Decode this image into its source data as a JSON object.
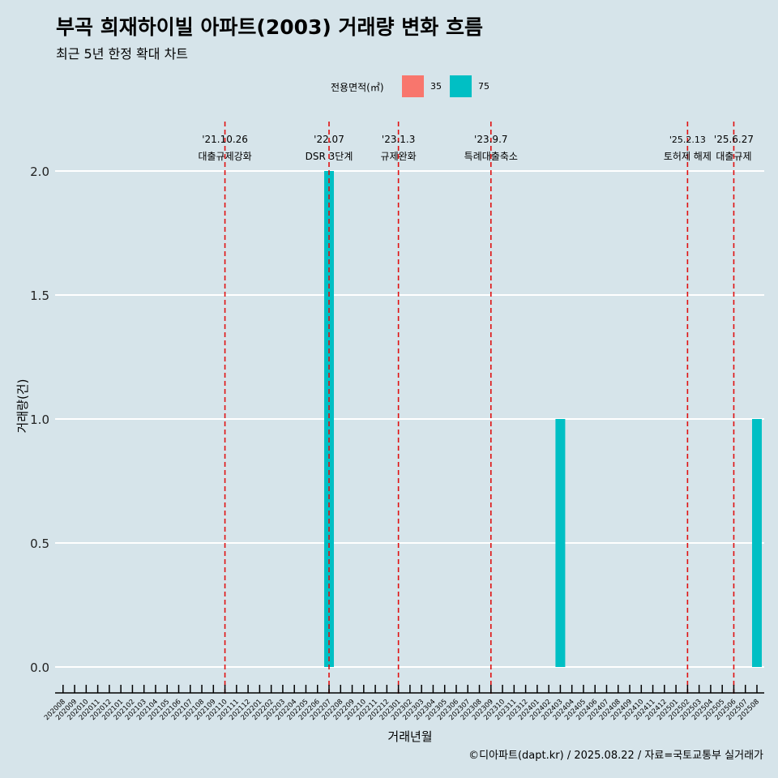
{
  "title": "부곡 희재하이빌 아파트(2003) 거래량 변화 흐름",
  "subtitle": "최근 5년 한정 확대 차트",
  "credit": "©디아파트(dapt.kr) / 2025.08.22 / 자료=국토교통부 실거래가",
  "legend": {
    "title": "전용면적(㎡)",
    "items": [
      {
        "label": "35",
        "color": "#f8766d"
      },
      {
        "label": "75",
        "color": "#00bfc4"
      }
    ]
  },
  "colors": {
    "background": "#d6e4ea",
    "grid": "#ffffff",
    "event_line": "#e01010"
  },
  "chart_data": {
    "type": "bar",
    "title": "부곡 희재하이빌 아파트(2003) 거래량 변화 흐름",
    "subtitle": "최근 5년 한정 확대 차트",
    "xlabel": "거래년월",
    "ylabel": "거래량(건)",
    "ylim": [
      0,
      2
    ],
    "yticks": [
      "0.0",
      "0.5",
      "1.0",
      "1.5",
      "2.0"
    ],
    "grid": true,
    "legend_position": "top",
    "categories": [
      "202008",
      "202009",
      "202010",
      "202011",
      "202012",
      "202101",
      "202102",
      "202103",
      "202104",
      "202105",
      "202106",
      "202107",
      "202108",
      "202109",
      "202110",
      "202111",
      "202112",
      "202201",
      "202202",
      "202203",
      "202204",
      "202205",
      "202206",
      "202207",
      "202208",
      "202209",
      "202210",
      "202211",
      "202212",
      "202301",
      "202302",
      "202303",
      "202304",
      "202305",
      "202306",
      "202307",
      "202308",
      "202309",
      "202310",
      "202311",
      "202312",
      "202401",
      "202402",
      "202403",
      "202404",
      "202405",
      "202406",
      "202407",
      "202408",
      "202409",
      "202410",
      "202411",
      "202412",
      "202501",
      "202502",
      "202503",
      "202504",
      "202505",
      "202506",
      "202507",
      "202508"
    ],
    "series": [
      {
        "name": "35",
        "color": "#f8766d",
        "values": [
          0,
          0,
          0,
          0,
          0,
          0,
          0,
          0,
          0,
          0,
          0,
          0,
          0,
          0,
          0,
          0,
          0,
          0,
          0,
          0,
          0,
          0,
          0,
          0,
          0,
          0,
          0,
          0,
          0,
          0,
          0,
          0,
          0,
          0,
          0,
          0,
          0,
          0,
          0,
          0,
          0,
          0,
          0,
          0,
          0,
          0,
          0,
          0,
          0,
          0,
          0,
          0,
          0,
          0,
          0,
          0,
          0,
          0,
          0,
          0,
          0
        ]
      },
      {
        "name": "75",
        "color": "#00bfc4",
        "values": [
          0,
          0,
          0,
          0,
          0,
          0,
          0,
          0,
          0,
          0,
          0,
          0,
          0,
          0,
          0,
          0,
          0,
          0,
          0,
          0,
          0,
          0,
          0,
          2,
          0,
          0,
          0,
          0,
          0,
          0,
          0,
          0,
          0,
          0,
          0,
          0,
          0,
          0,
          0,
          0,
          0,
          0,
          0,
          1,
          0,
          0,
          0,
          0,
          0,
          0,
          0,
          0,
          0,
          0,
          0,
          0,
          0,
          0,
          0,
          0,
          1
        ]
      }
    ],
    "events": [
      {
        "month": "202110",
        "date": "'21.10.26",
        "label": "대출규제강화"
      },
      {
        "month": "202207",
        "date": "'22.07",
        "label": "DSR 3단계"
      },
      {
        "month": "202301",
        "date": "'23.1.3",
        "label": "규제완화"
      },
      {
        "month": "202309",
        "date": "'23.9.7",
        "label": "특례대출축소"
      },
      {
        "month": "202502",
        "date": "'25.2.13",
        "label": "토허제 해제"
      },
      {
        "month": "202506",
        "date": "'25.6.27",
        "label": "대출규제"
      }
    ]
  }
}
